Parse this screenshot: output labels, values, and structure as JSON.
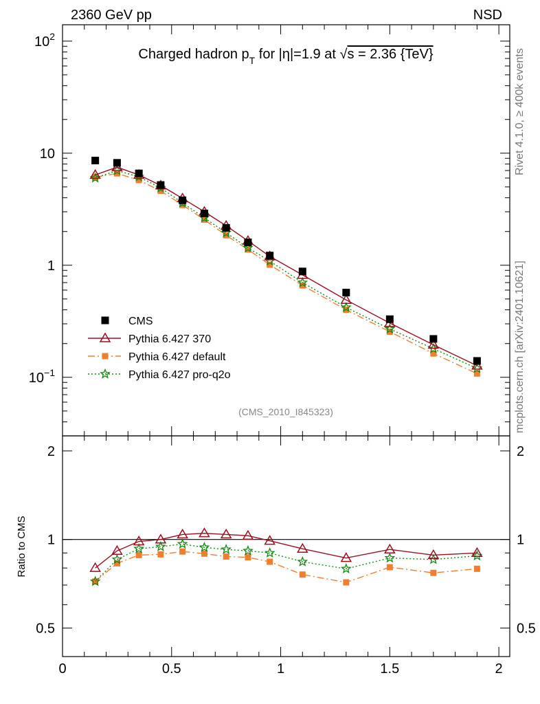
{
  "header": {
    "energy": "2360 GeV pp",
    "process": "NSD",
    "side_rivet": "Rivet 4.1.0, ≥ 400k events",
    "side_source": "mcplots.cern.ch [arXiv:2401.10621]"
  },
  "chart_data": {
    "type": "line",
    "title": "Charged hadron p_T for |η|=1.9 at √s = 2.36 {TeV}",
    "title_parts": {
      "a": "Charged hadron p",
      "sub": "T",
      "b": " for |η|=1.9 at ",
      "sqrt": "√",
      "c": "s = 2.36 {TeV}"
    },
    "analysis_tag": "(CMS_2010_I845323)",
    "x": [
      0.15,
      0.25,
      0.35,
      0.45,
      0.55,
      0.65,
      0.75,
      0.85,
      0.95,
      1.1,
      1.3,
      1.5,
      1.7,
      1.9
    ],
    "xlim": [
      0,
      2.05
    ],
    "ylim_main": [
      0.03,
      140
    ],
    "ylim_ratio": [
      0.4,
      2.25
    ],
    "ylabel_ratio": "Ratio to CMS",
    "xticks": [
      {
        "v": 0,
        "label": "0"
      },
      {
        "v": 0.5,
        "label": "0.5"
      },
      {
        "v": 1,
        "label": "1"
      },
      {
        "v": 1.5,
        "label": "1.5"
      },
      {
        "v": 2,
        "label": "2"
      }
    ],
    "ratio_ticks": [
      {
        "v": 0.5,
        "label": "0.5"
      },
      {
        "v": 1,
        "label": "1"
      },
      {
        "v": 2,
        "label": "2"
      }
    ],
    "main_ticks": [
      {
        "v": 0.1,
        "base": "10",
        "exp": "−1"
      },
      {
        "v": 1,
        "base": "1",
        "exp": ""
      },
      {
        "v": 10,
        "base": "10",
        "exp": ""
      },
      {
        "v": 100,
        "base": "10",
        "exp": "2"
      }
    ],
    "series": [
      {
        "name": "CMS",
        "color": "#000000",
        "marker": "square",
        "dash": "none",
        "values": [
          8.6,
          8.2,
          6.6,
          5.2,
          3.8,
          2.9,
          2.15,
          1.6,
          1.22,
          0.88,
          0.57,
          0.33,
          0.22,
          0.14
        ]
      },
      {
        "name": "Pythia 6.427 370",
        "color": "#9b0e1e",
        "marker": "triangle",
        "dash": "none",
        "values": [
          6.4,
          7.5,
          6.4,
          5.15,
          3.95,
          3.0,
          2.25,
          1.65,
          1.2,
          0.82,
          0.49,
          0.305,
          0.195,
          0.127
        ]
      },
      {
        "name": "Pythia 6.427 default",
        "color": "#f07e2f",
        "marker": "square-small",
        "dash": "dashdot",
        "values": [
          6.1,
          6.6,
          5.75,
          4.6,
          3.45,
          2.55,
          1.85,
          1.38,
          1.01,
          0.66,
          0.4,
          0.255,
          0.163,
          0.108
        ]
      },
      {
        "name": "Pythia 6.427 pro-q2o",
        "color": "#118811",
        "marker": "star",
        "dash": "dotted",
        "values": [
          6.0,
          7.0,
          6.15,
          4.9,
          3.6,
          2.65,
          1.95,
          1.43,
          1.09,
          0.7,
          0.42,
          0.27,
          0.18,
          0.12
        ]
      }
    ],
    "ratios": [
      {
        "name": "Pythia 6.427 370",
        "values": [
          0.8,
          0.915,
          0.985,
          1.0,
          1.04,
          1.05,
          1.04,
          1.03,
          0.99,
          0.93,
          0.865,
          0.925,
          0.885,
          0.9
        ]
      },
      {
        "name": "Pythia 6.427 default",
        "values": [
          0.72,
          0.83,
          0.885,
          0.89,
          0.91,
          0.895,
          0.875,
          0.87,
          0.84,
          0.76,
          0.715,
          0.805,
          0.77,
          0.795
        ]
      },
      {
        "name": "Pythia 6.427 pro-q2o",
        "values": [
          0.72,
          0.855,
          0.93,
          0.945,
          0.965,
          0.94,
          0.925,
          0.915,
          0.9,
          0.84,
          0.795,
          0.865,
          0.855,
          0.88
        ]
      }
    ],
    "legend_position": "lower-left"
  }
}
